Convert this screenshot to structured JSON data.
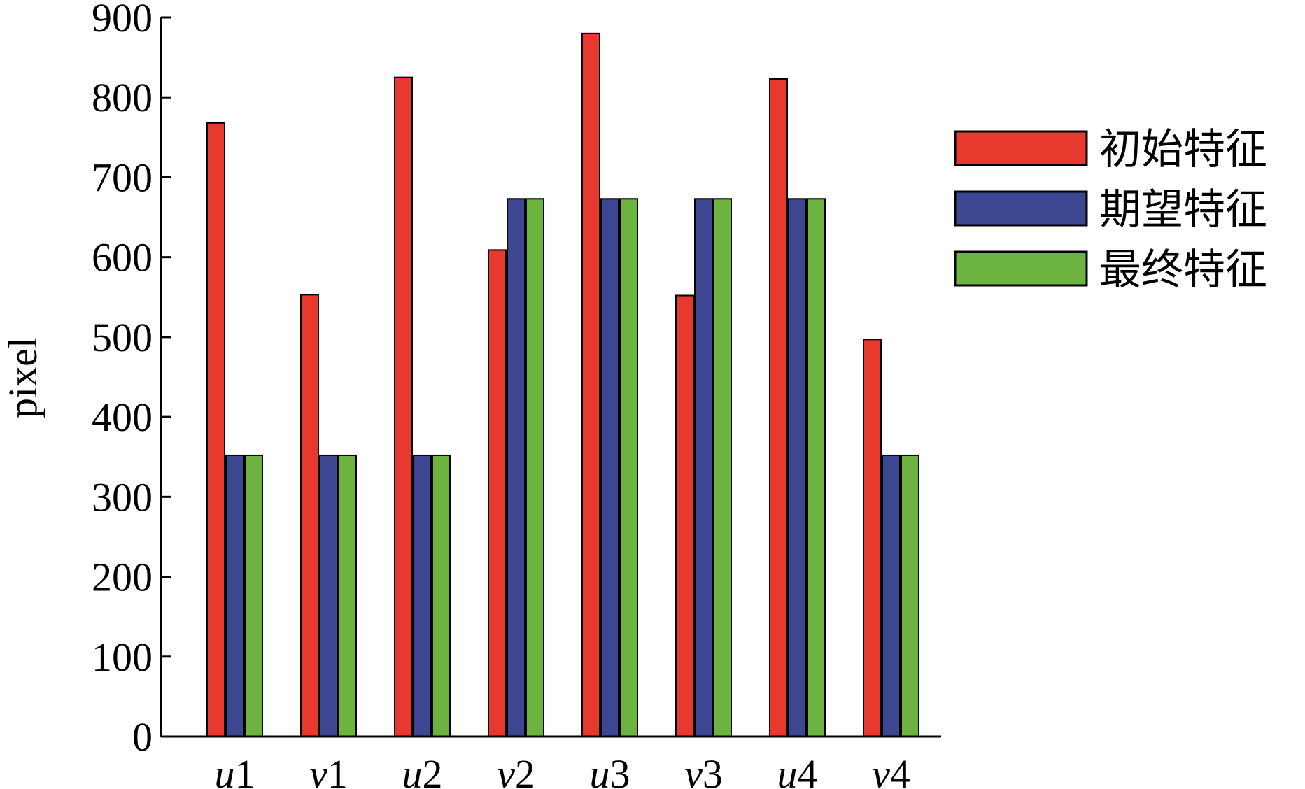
{
  "chart_data": {
    "type": "bar",
    "title": "",
    "xlabel": "",
    "ylabel": "pixel",
    "ylim": [
      0,
      900
    ],
    "yticks": [
      0,
      100,
      200,
      300,
      400,
      500,
      600,
      700,
      800,
      900
    ],
    "categories": [
      {
        "letter": "u",
        "index": "1"
      },
      {
        "letter": "v",
        "index": "1"
      },
      {
        "letter": "u",
        "index": "2"
      },
      {
        "letter": "v",
        "index": "2"
      },
      {
        "letter": "u",
        "index": "3"
      },
      {
        "letter": "v",
        "index": "3"
      },
      {
        "letter": "u",
        "index": "4"
      },
      {
        "letter": "v",
        "index": "4"
      }
    ],
    "series": [
      {
        "name": "初始特征",
        "color": "#e8392f",
        "values": [
          768,
          553,
          825,
          609,
          880,
          552,
          823,
          497
        ]
      },
      {
        "name": "期望特征",
        "color": "#3d4690",
        "values": [
          352,
          352,
          352,
          673,
          673,
          673,
          673,
          352
        ]
      },
      {
        "name": "最终特征",
        "color": "#6cb33f",
        "values": [
          352,
          352,
          352,
          673,
          673,
          673,
          673,
          352
        ]
      }
    ],
    "legend_position": "top-right",
    "grid": false
  }
}
